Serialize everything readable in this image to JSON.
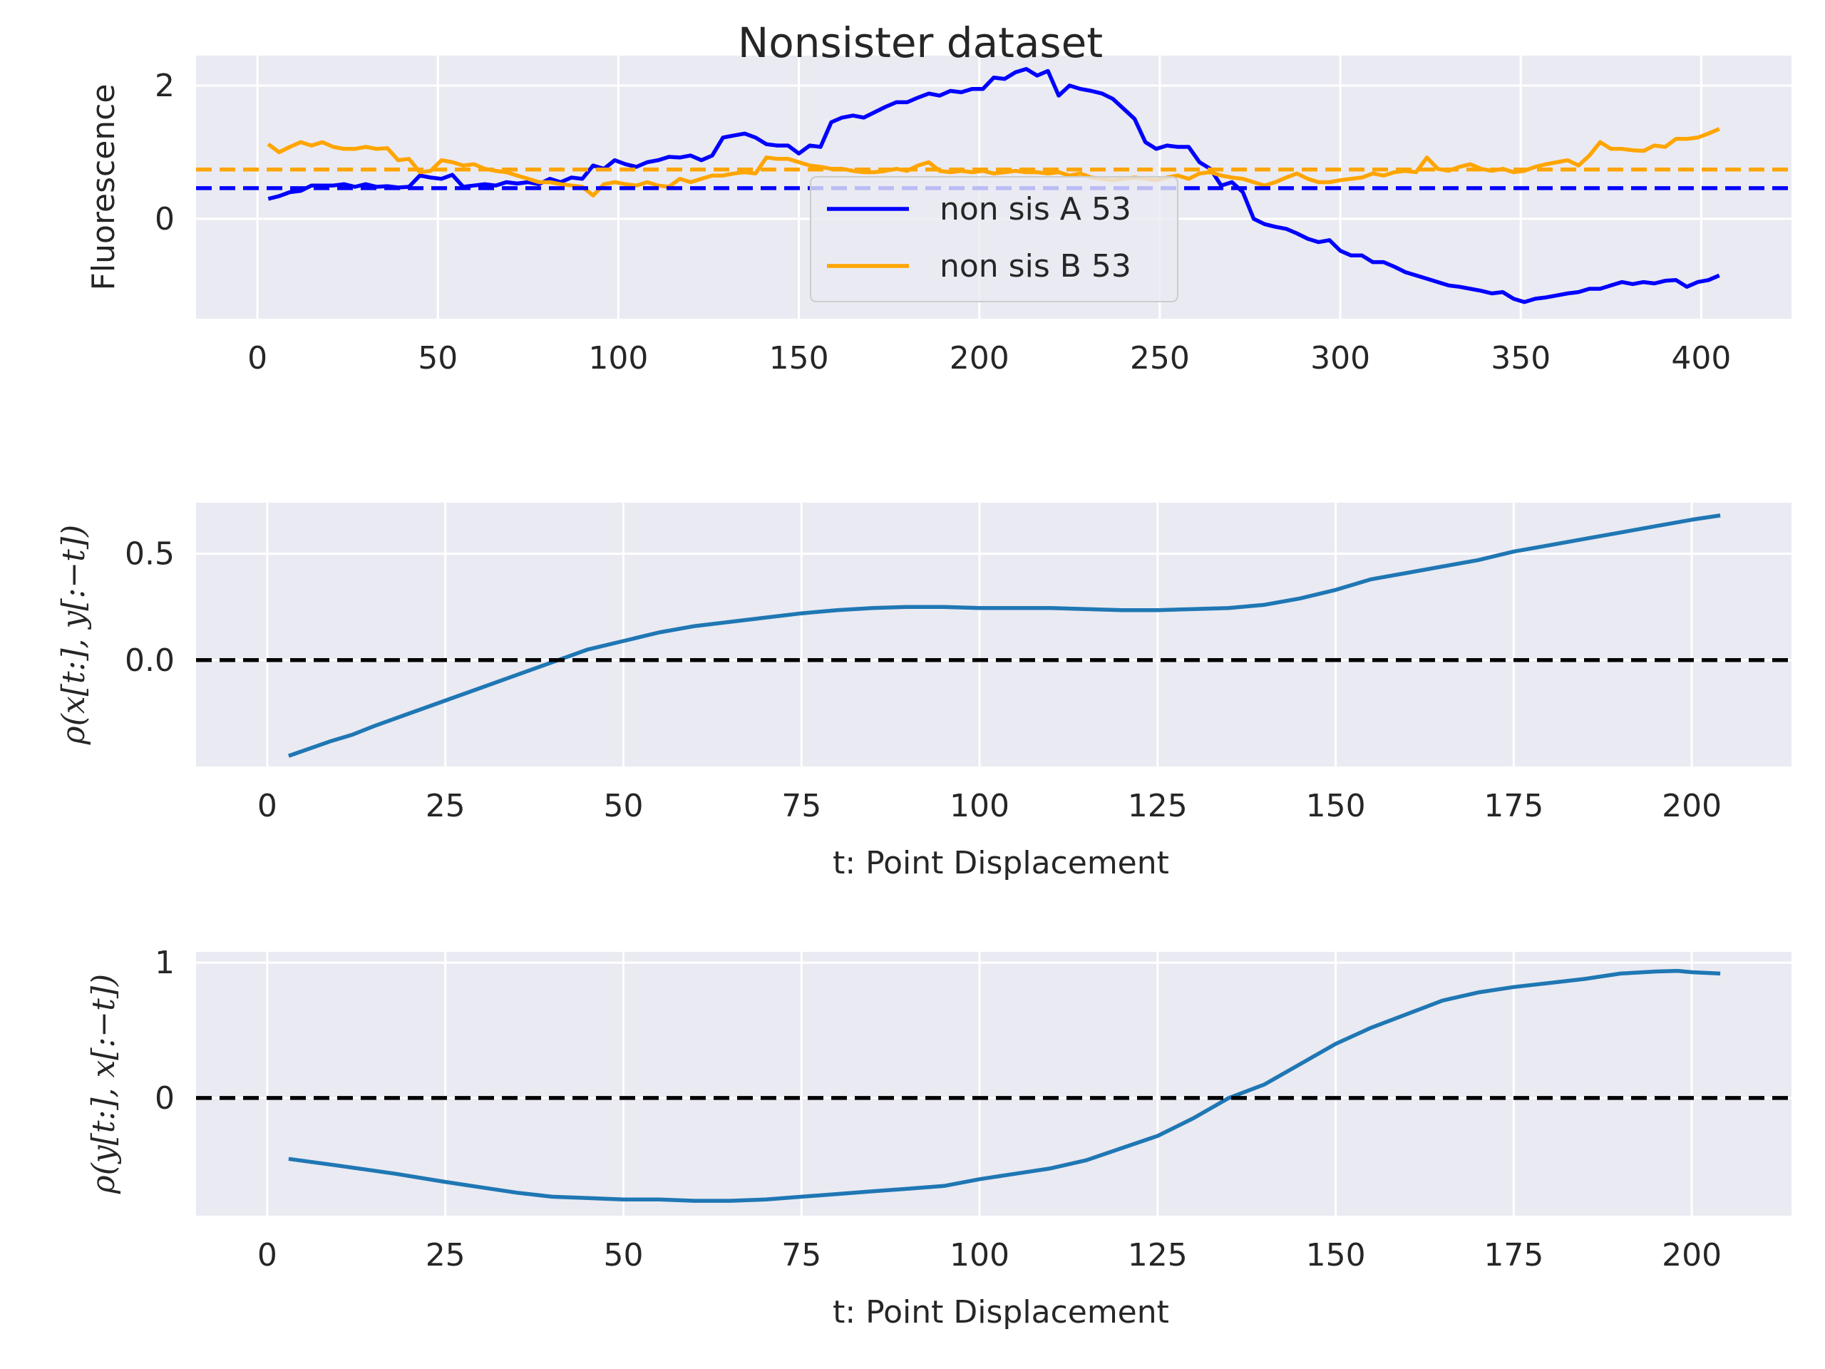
{
  "figure_title": "Nonsister dataset",
  "chart_data": [
    {
      "type": "line",
      "ylabel": "Fluorescence",
      "xlabel": "",
      "xlim": [
        -17,
        425
      ],
      "ylim": [
        -1.5,
        2.45
      ],
      "xticks": [
        0,
        50,
        100,
        150,
        200,
        250,
        300,
        350,
        400
      ],
      "yticks": [
        0,
        2
      ],
      "grid": true,
      "legend_position": "center",
      "series": [
        {
          "name": "non sis A 53",
          "color": "#0000ff",
          "x": [
            3,
            6,
            9,
            12,
            15,
            18,
            21,
            24,
            27,
            30,
            33,
            36,
            39,
            42,
            45,
            48,
            51,
            54,
            57,
            60,
            63,
            66,
            69,
            72,
            75,
            78,
            81,
            84,
            87,
            90,
            93,
            96,
            99,
            102,
            105,
            108,
            111,
            114,
            117,
            120,
            123,
            126,
            129,
            132,
            135,
            138,
            141,
            144,
            147,
            150,
            153,
            156,
            159,
            162,
            165,
            168,
            171,
            174,
            177,
            180,
            183,
            186,
            189,
            192,
            195,
            198,
            201,
            204,
            207,
            210,
            213,
            216,
            219,
            222,
            225,
            228,
            231,
            234,
            237,
            240,
            243,
            246,
            249,
            252,
            255,
            258,
            261,
            264,
            267,
            270,
            273,
            276,
            279,
            282,
            285,
            288,
            291,
            294,
            297,
            300,
            303,
            306,
            309,
            312,
            315,
            318,
            321,
            324,
            327,
            330,
            333,
            336,
            339,
            342,
            345,
            348,
            351,
            354,
            357,
            360,
            363,
            366,
            369,
            372,
            375,
            378,
            381,
            384,
            387,
            390,
            393,
            396,
            399,
            402,
            405
          ],
          "y": [
            0.3,
            0.34,
            0.4,
            0.42,
            0.5,
            0.5,
            0.5,
            0.52,
            0.48,
            0.52,
            0.48,
            0.49,
            0.47,
            0.48,
            0.65,
            0.62,
            0.6,
            0.66,
            0.48,
            0.5,
            0.52,
            0.5,
            0.55,
            0.53,
            0.55,
            0.52,
            0.6,
            0.55,
            0.62,
            0.6,
            0.8,
            0.75,
            0.88,
            0.82,
            0.78,
            0.85,
            0.88,
            0.93,
            0.92,
            0.95,
            0.88,
            0.95,
            1.22,
            1.25,
            1.28,
            1.22,
            1.12,
            1.1,
            1.1,
            0.98,
            1.1,
            1.08,
            1.45,
            1.52,
            1.55,
            1.52,
            1.6,
            1.68,
            1.75,
            1.75,
            1.82,
            1.88,
            1.85,
            1.92,
            1.9,
            1.95,
            1.95,
            2.12,
            2.1,
            2.2,
            2.25,
            2.15,
            2.22,
            1.85,
            2.0,
            1.95,
            1.92,
            1.88,
            1.8,
            1.65,
            1.5,
            1.15,
            1.05,
            1.1,
            1.08,
            1.08,
            0.85,
            0.75,
            0.5,
            0.55,
            0.4,
            0.0,
            -0.08,
            -0.12,
            -0.15,
            -0.22,
            -0.3,
            -0.35,
            -0.32,
            -0.48,
            -0.55,
            -0.55,
            -0.65,
            -0.65,
            -0.72,
            -0.8,
            -0.85,
            -0.9,
            -0.95,
            -1.0,
            -1.02,
            -1.05,
            -1.08,
            -1.12,
            -1.1,
            -1.2,
            -1.25,
            -1.2,
            -1.18,
            -1.15,
            -1.12,
            -1.1,
            -1.05,
            -1.05,
            -1.0,
            -0.95,
            -0.98,
            -0.95,
            -0.97,
            -0.93,
            -0.92,
            -1.02,
            -0.95,
            -0.92,
            -0.85
          ]
        },
        {
          "name": "non sis B 53",
          "color": "#ffa500",
          "x": [
            3,
            6,
            9,
            12,
            15,
            18,
            21,
            24,
            27,
            30,
            33,
            36,
            39,
            42,
            45,
            48,
            51,
            54,
            57,
            60,
            63,
            66,
            69,
            72,
            75,
            78,
            81,
            84,
            87,
            90,
            93,
            96,
            99,
            102,
            105,
            108,
            111,
            114,
            117,
            120,
            123,
            126,
            129,
            132,
            135,
            138,
            141,
            144,
            147,
            150,
            153,
            156,
            159,
            162,
            165,
            168,
            171,
            174,
            177,
            180,
            183,
            186,
            189,
            192,
            195,
            198,
            201,
            204,
            207,
            210,
            213,
            216,
            219,
            222,
            225,
            228,
            231,
            234,
            237,
            240,
            243,
            246,
            249,
            252,
            255,
            258,
            261,
            264,
            267,
            270,
            273,
            276,
            279,
            282,
            285,
            288,
            291,
            294,
            297,
            300,
            303,
            306,
            309,
            312,
            315,
            318,
            321,
            324,
            327,
            330,
            333,
            336,
            339,
            342,
            345,
            348,
            351,
            354,
            357,
            360,
            363,
            366,
            369,
            372,
            375,
            378,
            381,
            384,
            387,
            390,
            393,
            396,
            399,
            402,
            405
          ],
          "y": [
            1.12,
            1.0,
            1.08,
            1.15,
            1.1,
            1.15,
            1.08,
            1.05,
            1.05,
            1.08,
            1.05,
            1.06,
            0.88,
            0.9,
            0.7,
            0.72,
            0.88,
            0.85,
            0.8,
            0.82,
            0.75,
            0.72,
            0.7,
            0.65,
            0.6,
            0.55,
            0.55,
            0.52,
            0.5,
            0.48,
            0.35,
            0.52,
            0.55,
            0.52,
            0.5,
            0.55,
            0.5,
            0.48,
            0.6,
            0.55,
            0.6,
            0.65,
            0.65,
            0.68,
            0.7,
            0.68,
            0.92,
            0.9,
            0.9,
            0.85,
            0.8,
            0.78,
            0.75,
            0.75,
            0.72,
            0.7,
            0.7,
            0.72,
            0.75,
            0.72,
            0.8,
            0.85,
            0.72,
            0.7,
            0.72,
            0.7,
            0.72,
            0.68,
            0.7,
            0.72,
            0.7,
            0.7,
            0.68,
            0.7,
            0.65,
            0.68,
            0.62,
            0.6,
            0.58,
            0.6,
            0.62,
            0.6,
            0.58,
            0.62,
            0.65,
            0.6,
            0.68,
            0.7,
            0.65,
            0.62,
            0.6,
            0.55,
            0.5,
            0.55,
            0.62,
            0.68,
            0.6,
            0.55,
            0.55,
            0.58,
            0.6,
            0.62,
            0.68,
            0.65,
            0.7,
            0.72,
            0.7,
            0.92,
            0.75,
            0.72,
            0.78,
            0.82,
            0.75,
            0.72,
            0.75,
            0.7,
            0.72,
            0.78,
            0.82,
            0.85,
            0.88,
            0.8,
            0.95,
            1.15,
            1.05,
            1.05,
            1.03,
            1.02,
            1.1,
            1.08,
            1.2,
            1.2,
            1.22,
            1.28,
            1.35
          ]
        }
      ],
      "hlines": [
        {
          "y": 0.46,
          "color": "#0000ff",
          "style": "dashed"
        },
        {
          "y": 0.74,
          "color": "#ffa500",
          "style": "dashed"
        }
      ]
    },
    {
      "type": "line",
      "ylabel": "ρ(x[t:], y[:−t])",
      "xlabel": "t: Point Displacement",
      "xlim": [
        -10,
        214
      ],
      "ylim": [
        -0.5,
        0.74
      ],
      "xticks": [
        0,
        25,
        50,
        75,
        100,
        125,
        150,
        175,
        200
      ],
      "yticks": [
        0.0,
        0.5
      ],
      "ytick_labels": [
        "0.0",
        "0.5"
      ],
      "grid": true,
      "series": [
        {
          "color": "#1f77b4",
          "x": [
            3,
            9,
            12,
            15,
            20,
            25,
            30,
            35,
            40,
            45,
            50,
            55,
            60,
            65,
            70,
            75,
            80,
            85,
            90,
            95,
            100,
            105,
            110,
            115,
            120,
            125,
            130,
            135,
            140,
            145,
            150,
            155,
            160,
            165,
            170,
            175,
            180,
            185,
            190,
            195,
            200,
            204
          ],
          "y": [
            -0.45,
            -0.38,
            -0.35,
            -0.31,
            -0.25,
            -0.19,
            -0.13,
            -0.07,
            -0.01,
            0.05,
            0.09,
            0.13,
            0.16,
            0.18,
            0.2,
            0.22,
            0.235,
            0.245,
            0.25,
            0.25,
            0.245,
            0.245,
            0.245,
            0.24,
            0.235,
            0.235,
            0.24,
            0.245,
            0.26,
            0.29,
            0.33,
            0.38,
            0.41,
            0.44,
            0.47,
            0.51,
            0.54,
            0.57,
            0.6,
            0.63,
            0.66,
            0.68
          ]
        }
      ],
      "hlines": [
        {
          "y": 0.0,
          "color": "#000000",
          "style": "dashed"
        }
      ]
    },
    {
      "type": "line",
      "ylabel": "ρ(y[t:], x[:−t])",
      "xlabel": "t: Point Displacement",
      "xlim": [
        -10,
        214
      ],
      "ylim": [
        -0.87,
        1.08
      ],
      "xticks": [
        0,
        25,
        50,
        75,
        100,
        125,
        150,
        175,
        200
      ],
      "yticks": [
        0,
        1
      ],
      "grid": true,
      "series": [
        {
          "color": "#1f77b4",
          "x": [
            3,
            10,
            18,
            25,
            30,
            35,
            40,
            45,
            50,
            55,
            60,
            65,
            70,
            75,
            80,
            85,
            90,
            95,
            100,
            105,
            110,
            115,
            120,
            125,
            130,
            135,
            140,
            145,
            150,
            155,
            160,
            165,
            170,
            175,
            180,
            185,
            190,
            195,
            198,
            200,
            204
          ],
          "y": [
            -0.45,
            -0.5,
            -0.56,
            -0.62,
            -0.66,
            -0.7,
            -0.73,
            -0.74,
            -0.75,
            -0.75,
            -0.76,
            -0.76,
            -0.75,
            -0.73,
            -0.71,
            -0.69,
            -0.67,
            -0.65,
            -0.6,
            -0.56,
            -0.52,
            -0.46,
            -0.37,
            -0.28,
            -0.15,
            0.0,
            0.1,
            0.25,
            0.4,
            0.52,
            0.62,
            0.72,
            0.78,
            0.82,
            0.85,
            0.88,
            0.92,
            0.935,
            0.94,
            0.93,
            0.92
          ]
        }
      ],
      "hlines": [
        {
          "y": 0,
          "color": "#000000",
          "style": "dashed"
        }
      ]
    }
  ]
}
